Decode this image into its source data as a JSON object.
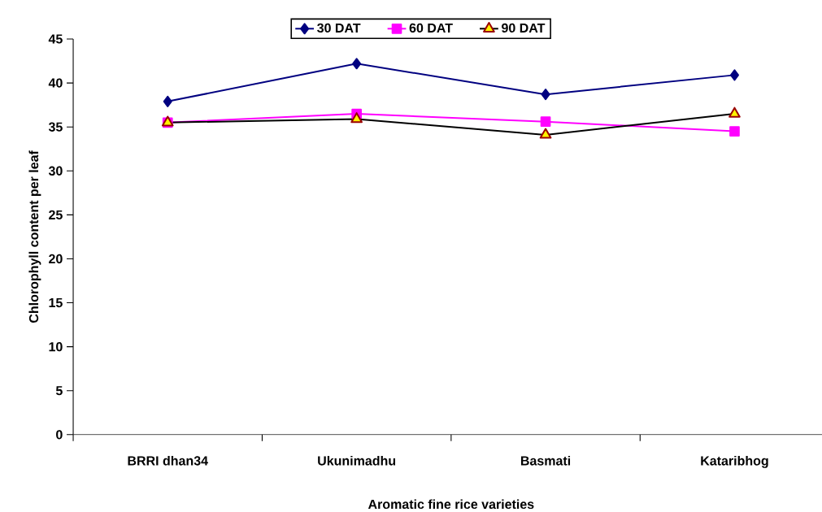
{
  "chart_data": {
    "type": "line",
    "xlabel": "Aromatic fine rice varieties",
    "ylabel": "Chlorophyll content per leaf",
    "categories": [
      "BRRI dhan34",
      "Ukunimadhu",
      "Basmati",
      "Kataribhog"
    ],
    "series": [
      {
        "name": "30 DAT",
        "color": "#000080",
        "marker": "diamond",
        "values": [
          37.9,
          42.2,
          38.7,
          40.9
        ]
      },
      {
        "name": "60 DAT",
        "color": "#ff00ff",
        "marker": "square",
        "values": [
          35.5,
          36.5,
          35.6,
          34.5
        ]
      },
      {
        "name": "90 DAT",
        "color": "#000000",
        "marker": "triangle",
        "values": [
          35.5,
          35.9,
          34.1,
          36.5
        ]
      }
    ],
    "ylim": [
      0,
      45
    ],
    "yticks": [
      0,
      5,
      10,
      15,
      20,
      25,
      30,
      35,
      40,
      45
    ],
    "grid": false,
    "legend": "top",
    "line_style": "solid"
  }
}
